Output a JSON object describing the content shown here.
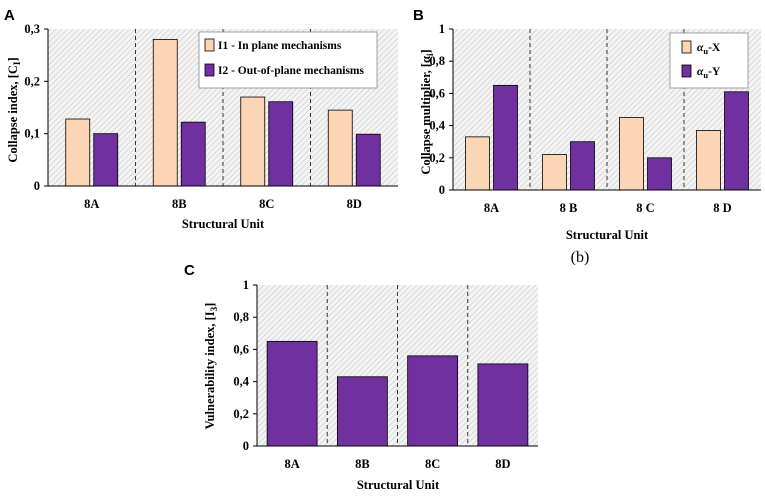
{
  "chart_data": [
    {
      "panel": "A",
      "type": "bar",
      "categories": [
        "8A",
        "8B",
        "8C",
        "8D"
      ],
      "series": [
        {
          "name": "I1 - In plane mechanisms",
          "color": "#FCD5B5",
          "values": [
            0.128,
            0.28,
            0.17,
            0.145
          ]
        },
        {
          "name": "I2 - Out-of-plane mechanisms",
          "color": "#7030A0",
          "values": [
            0.1,
            0.122,
            0.161,
            0.099
          ]
        }
      ],
      "xlabel": "Structural Unit",
      "ylabel": "Collapse index, [C",
      "ylabel_sub": "I",
      "ylabel_end": "]",
      "ylim": [
        0,
        0.3
      ],
      "yticks": [
        "0",
        "0,1",
        "0,2",
        "0,3"
      ],
      "grid": false,
      "legend": "top-right"
    },
    {
      "panel": "B",
      "type": "bar",
      "categories": [
        "8A",
        "8 B",
        "8 C",
        "8 D"
      ],
      "series": [
        {
          "name": "αu-X",
          "label_main": "α",
          "label_sub": "u",
          "label_end": "-X",
          "color": "#FCD5B5",
          "values": [
            0.33,
            0.22,
            0.45,
            0.37
          ]
        },
        {
          "name": "αu-Y",
          "label_main": "α",
          "label_sub": "u",
          "label_end": "-Y",
          "color": "#7030A0",
          "values": [
            0.65,
            0.3,
            0.2,
            0.61
          ]
        }
      ],
      "xlabel": "Structural Unit",
      "ylabel": "Collapse multiplier, [α",
      "ylabel_sub": "i",
      "ylabel_end": "]",
      "ylim": [
        0,
        1
      ],
      "yticks": [
        "0",
        "0,2",
        "0,4",
        "0,6",
        "0,8",
        "1"
      ],
      "grid": false,
      "legend": "top-right",
      "caption": "(b)"
    },
    {
      "panel": "C",
      "type": "bar",
      "categories": [
        "8A",
        "8B",
        "8C",
        "8D"
      ],
      "series": [
        {
          "name": "I3",
          "color": "#7030A0",
          "values": [
            0.65,
            0.43,
            0.56,
            0.51
          ]
        }
      ],
      "xlabel": "Structural Unit",
      "ylabel": "Vulnerability index, [I",
      "ylabel_sub": "3",
      "ylabel_end": "]",
      "ylim": [
        0,
        1
      ],
      "yticks": [
        "0",
        "0,2",
        "0,4",
        "0,6",
        "0,8",
        "1"
      ],
      "grid": false,
      "legend": "none"
    }
  ]
}
